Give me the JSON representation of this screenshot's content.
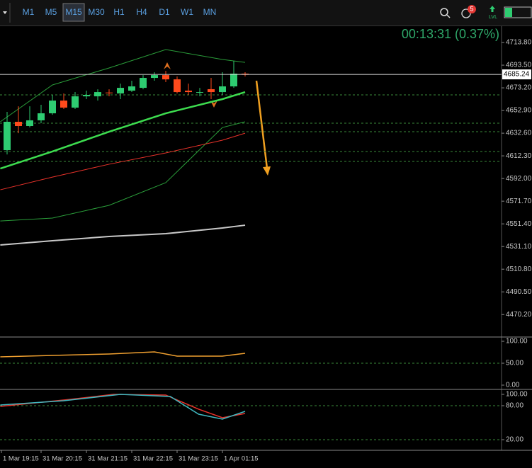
{
  "toolbar": {
    "timeframes": [
      "M1",
      "M5",
      "M15",
      "M30",
      "H1",
      "H4",
      "D1",
      "W1",
      "MN"
    ],
    "active": "M15",
    "notifications": "5",
    "level_label": "LVL"
  },
  "timer": "00:13:31 (0.37%)",
  "xlim": [
    -0.625,
    43.625
  ],
  "xticks": [
    {
      "value": -0.5,
      "label": "1 Mar 19:15"
    },
    {
      "value": 3,
      "label": "31 Mar 20:15"
    },
    {
      "value": 7,
      "label": "31 Mar 21:15"
    },
    {
      "value": 11,
      "label": "31 Mar 22:15"
    },
    {
      "value": 15,
      "label": "31 Mar 23:15"
    },
    {
      "value": 19,
      "label": "1 Apr 01:15"
    }
  ],
  "price_chart": {
    "ylim": [
      4450.7,
      4728.4
    ],
    "yticks": [
      {
        "value": 4713.8,
        "label": "4713.80"
      },
      {
        "value": 4693.5,
        "label": "4693.50"
      },
      {
        "value": 4673.2,
        "label": "4673.20"
      },
      {
        "value": 4652.9,
        "label": "4652.90"
      },
      {
        "value": 4632.6,
        "label": "4632.60"
      },
      {
        "value": 4612.3,
        "label": "4612.30"
      },
      {
        "value": 4592,
        "label": "4592.00"
      },
      {
        "value": 4571.7,
        "label": "4571.70"
      },
      {
        "value": 4551.4,
        "label": "4551.40"
      },
      {
        "value": 4531.1,
        "label": "4531.10"
      },
      {
        "value": 4510.8,
        "label": "4510.80"
      },
      {
        "value": 4490.5,
        "label": "4490.50"
      },
      {
        "value": 4470.2,
        "label": "4470.20"
      }
    ],
    "current_price": {
      "value": 4685.24,
      "label": "4685.24"
    },
    "levels": [
      4666.9,
      4641.5,
      4633.9,
      4616.2,
      4607.3
    ],
    "up_color": "#2ecc71",
    "down_color": "#ff4a1c",
    "candles": {
      "x": [
        0,
        1,
        2,
        3,
        4,
        5,
        6,
        7,
        8,
        9,
        10,
        11,
        12,
        13,
        14,
        15,
        16,
        17,
        18,
        19,
        20,
        21
      ],
      "open": [
        4617.4,
        4642.8,
        4639.0,
        4644.1,
        4650.4,
        4661.8,
        4655.5,
        4665.6,
        4665.6,
        4669.0,
        4668.2,
        4670.7,
        4673.2,
        4682.1,
        4684.6,
        4680.8,
        4670.7,
        4669.4,
        4672.0,
        4669.4,
        4674.5,
        4685.9
      ],
      "high": [
        4651.7,
        4656.7,
        4656.7,
        4658.0,
        4666.9,
        4668.2,
        4669.4,
        4670.7,
        4671.9,
        4671.9,
        4677.0,
        4679.6,
        4684.6,
        4687.2,
        4688.4,
        4683.4,
        4677.0,
        4673.2,
        4682.1,
        4687.2,
        4697.3,
        4687.2
      ],
      "low": [
        4613.6,
        4632.6,
        4637.7,
        4641.5,
        4649.1,
        4654.2,
        4654.2,
        4663.1,
        4661.8,
        4665.6,
        4663.1,
        4669.4,
        4671.9,
        4679.6,
        4678.3,
        4668.2,
        4666.9,
        4665.6,
        4663.1,
        4666.9,
        4673.2,
        4683.4
      ],
      "close": [
        4642.8,
        4639.0,
        4644.1,
        4650.4,
        4661.8,
        4655.5,
        4665.6,
        4666.9,
        4669.4,
        4668.6,
        4673.2,
        4674.5,
        4682.1,
        4684.6,
        4680.8,
        4669.4,
        4669.4,
        4669.4,
        4669.4,
        4674.5,
        4685.9,
        4685.2
      ]
    },
    "indicators": [
      {
        "color": "#2a9d3a",
        "line_width": 1,
        "x": [
          -0.6,
          4,
          9,
          14,
          19,
          21
        ],
        "values": [
          4642.8,
          4675.8,
          4691.0,
          4707.5,
          4698.6,
          4696.0
        ]
      },
      {
        "color": "#2a9d3a",
        "line_width": 1,
        "x": [
          -0.6,
          4,
          9,
          14,
          19,
          21
        ],
        "values": [
          4554.0,
          4556.6,
          4568.0,
          4588.3,
          4637.7,
          4642.8
        ]
      },
      {
        "color": "#e8322a",
        "line_width": 1,
        "x": [
          -0.6,
          4,
          9,
          14,
          19,
          21
        ],
        "values": [
          4581.9,
          4593.3,
          4604.8,
          4614.9,
          4626.3,
          4632.6
        ]
      },
      {
        "color": "#c8c8c8",
        "line_width": 2,
        "x": [
          -0.6,
          4,
          9,
          14,
          19,
          21
        ],
        "values": [
          4532.5,
          4536.3,
          4540.1,
          4542.6,
          4547.7,
          4550.2
        ]
      },
      {
        "color": "#3ddc4f",
        "line_width": 2.5,
        "x": [
          -0.6,
          4,
          9,
          14,
          19,
          21
        ],
        "values": [
          4600.9,
          4616.2,
          4633.9,
          4650.4,
          4663.1,
          4669.4
        ]
      }
    ]
  },
  "oscillator": {
    "ylim": [
      -8.1,
      106.5
    ],
    "yticks": [
      {
        "value": 100,
        "label": "100.00"
      },
      {
        "value": 50,
        "label": "50.00"
      },
      {
        "value": 0,
        "label": "0.00"
      }
    ],
    "levels": [
      50
    ],
    "lines": [
      {
        "color": "#f0a030",
        "x": [
          -0.6,
          4,
          9,
          13,
          15,
          19,
          21
        ],
        "values": [
          64.5,
          67.7,
          71.0,
          75.8,
          66.1,
          66.1,
          72.6
        ]
      }
    ]
  },
  "stochastic": {
    "ylim": [
      2.5,
      107.5
    ],
    "yticks": [
      {
        "value": 100,
        "label": "100.00"
      },
      {
        "value": 80,
        "label": "80.00"
      },
      {
        "value": 20,
        "label": "20.00"
      }
    ],
    "levels": [
      80,
      20
    ],
    "lines": [
      {
        "color": "#e8322a",
        "x": [
          -0.6,
          5.6,
          9.4,
          14,
          16.9,
          19,
          21
        ],
        "values": [
          78.8,
          91.3,
          100,
          98.8,
          73.8,
          58.8,
          66.3
        ]
      },
      {
        "color": "#3fb8c0",
        "x": [
          -0.6,
          5,
          10,
          14.4,
          16.9,
          19,
          21
        ],
        "values": [
          81.3,
          88.8,
          100,
          96.3,
          65,
          56.3,
          70
        ]
      }
    ]
  }
}
